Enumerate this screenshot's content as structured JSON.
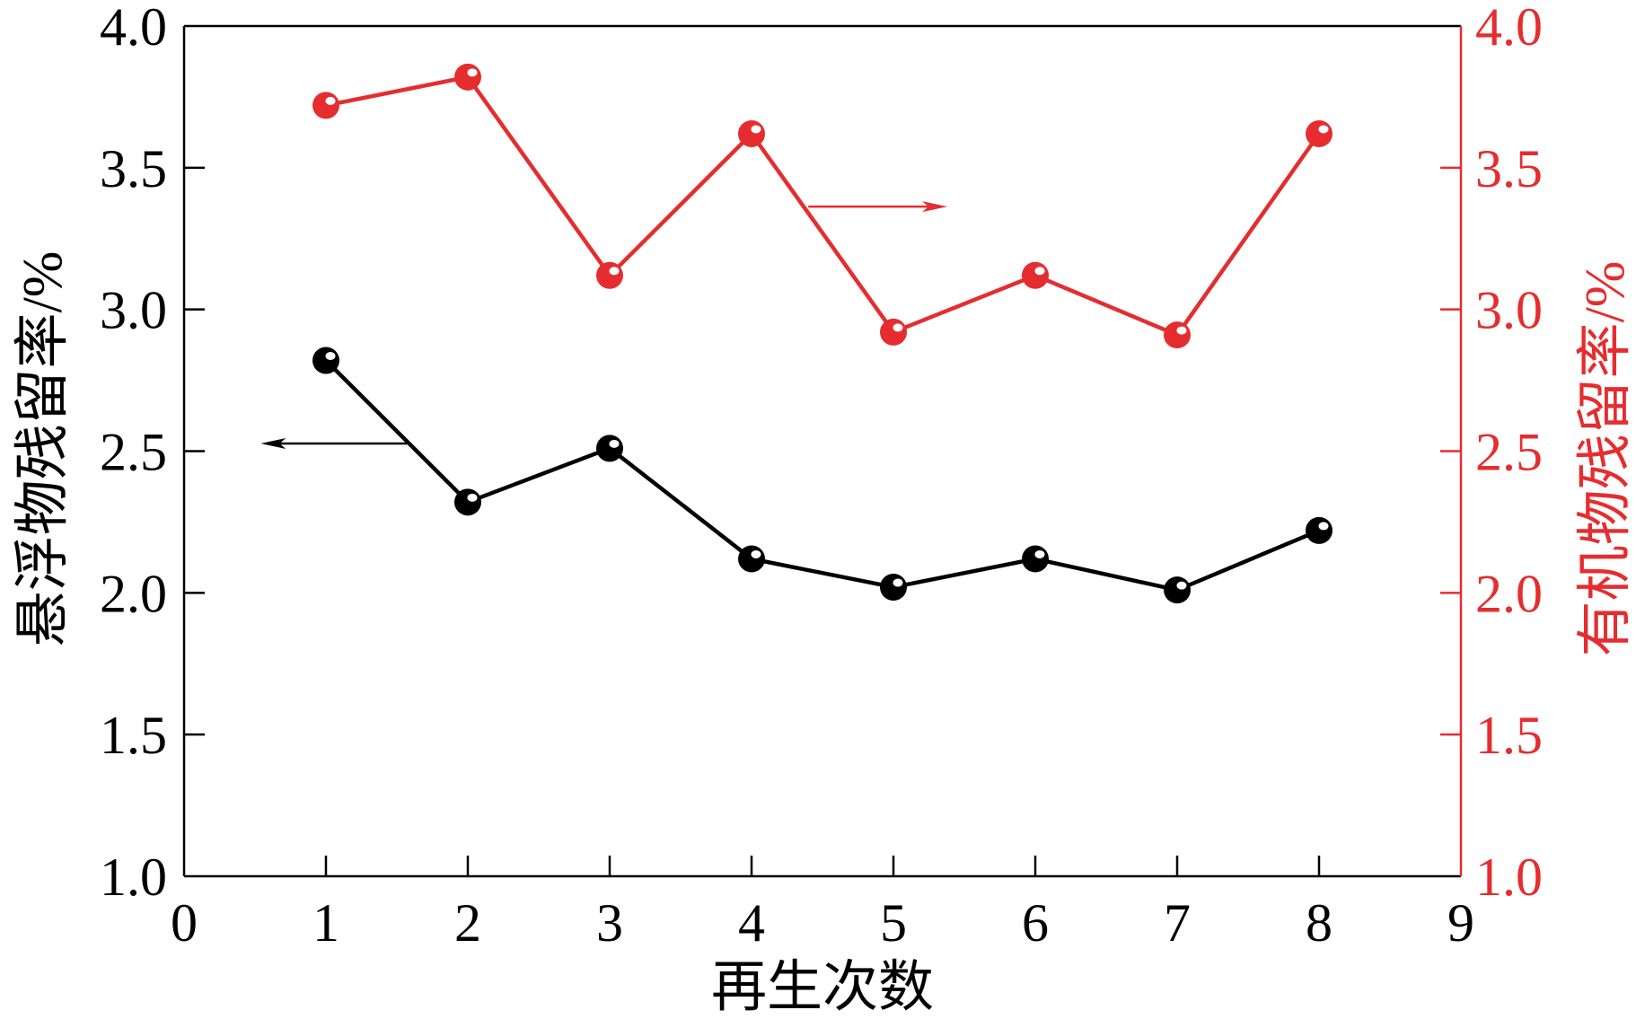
{
  "chart_data": {
    "type": "line",
    "xlabel": "再生次数",
    "ylabel": "悬浮物残留率/%",
    "y2label": "有机物残留率/%",
    "xlim": [
      0,
      9
    ],
    "ylim": [
      1.0,
      4.0
    ],
    "y2lim": [
      1.0,
      4.0
    ],
    "x_ticks": [
      "0",
      "1",
      "2",
      "3",
      "4",
      "5",
      "6",
      "7",
      "8",
      "9"
    ],
    "y_ticks": [
      "1.0",
      "1.5",
      "2.0",
      "2.5",
      "3.0",
      "3.5",
      "4.0"
    ],
    "y2_ticks": [
      "1.0",
      "1.5",
      "2.0",
      "2.5",
      "3.0",
      "3.5",
      "4.0"
    ],
    "x": [
      1,
      2,
      3,
      4,
      5,
      6,
      7,
      8
    ],
    "series": [
      {
        "secondary_axis": false,
        "color": "#000000",
        "values": [
          2.82,
          2.32,
          2.51,
          2.12,
          2.02,
          2.12,
          2.01,
          2.22
        ]
      },
      {
        "secondary_axis": true,
        "color": "#e52d2f",
        "values": [
          3.72,
          3.82,
          3.12,
          3.62,
          2.92,
          3.12,
          2.91,
          3.62
        ]
      }
    ],
    "grid": false,
    "legend": false
  },
  "colors": {
    "left_axis": "#000000",
    "right_axis": "#e52d2f",
    "background": "#ffffff"
  }
}
